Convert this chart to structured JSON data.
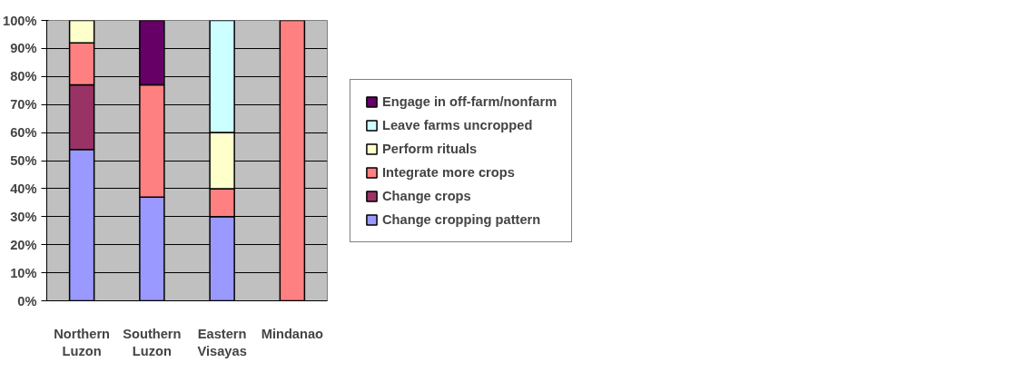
{
  "chart_data": {
    "type": "bar",
    "stacked": true,
    "categories": [
      "Northern\nLuzon",
      "Southern\nLuzon",
      "Eastern\nVisayas",
      "Mindanao"
    ],
    "series": [
      {
        "name": "Change cropping pattern",
        "color": "#9999ff",
        "values": [
          54,
          37,
          30,
          null
        ]
      },
      {
        "name": "Change crops",
        "color": "#993366",
        "values": [
          23,
          null,
          null,
          null
        ]
      },
      {
        "name": "Integrate more crops",
        "color": "#ff8080",
        "values": [
          15,
          40,
          10,
          100
        ]
      },
      {
        "name": "Perform rituals",
        "color": "#ffffcc",
        "values": [
          8,
          null,
          20,
          null
        ]
      },
      {
        "name": "Leave farms uncropped",
        "color": "#ccffff",
        "values": [
          null,
          null,
          40,
          null
        ]
      },
      {
        "name": "Engage in off-farm/nonfarm",
        "color": "#660066",
        "values": [
          null,
          23,
          null,
          null
        ]
      }
    ],
    "ylim": [
      0,
      100
    ],
    "yticks": [
      {
        "value": 0,
        "label": "0%"
      },
      {
        "value": 10,
        "label": "10%"
      },
      {
        "value": 20,
        "label": "20%"
      },
      {
        "value": 30,
        "label": "30%"
      },
      {
        "value": 40,
        "label": "40%"
      },
      {
        "value": 50,
        "label": "50%"
      },
      {
        "value": 60,
        "label": "60%"
      },
      {
        "value": 70,
        "label": "70%"
      },
      {
        "value": 80,
        "label": "80%"
      },
      {
        "value": 90,
        "label": "90%"
      },
      {
        "value": 100,
        "label": "100%"
      }
    ],
    "grid": "y",
    "legend": "right"
  }
}
